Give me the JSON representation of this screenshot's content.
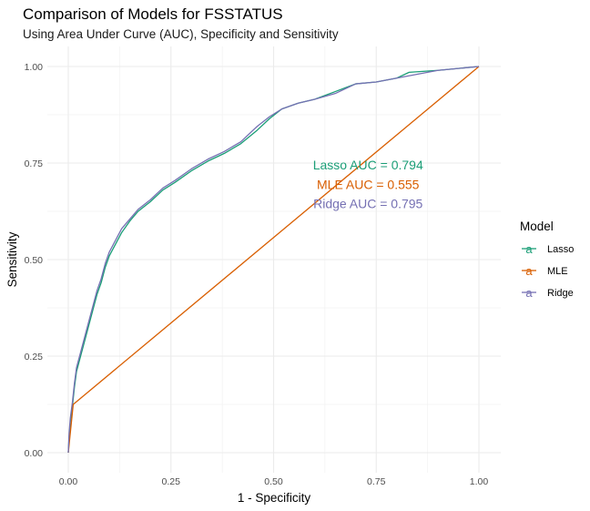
{
  "chart_data": {
    "type": "line",
    "title": "Comparison of Models for FSSTATUS",
    "subtitle": "Using Area Under Curve (AUC), Specificity and Sensitivity",
    "xlabel": "1 - Specificity",
    "ylabel": "Sensitivity",
    "xlim": [
      0,
      1
    ],
    "ylim": [
      0,
      1
    ],
    "x_ticks": [
      "0.00",
      "0.25",
      "0.50",
      "0.75",
      "1.00"
    ],
    "y_ticks": [
      "0.00",
      "0.25",
      "0.50",
      "0.75",
      "1.00"
    ],
    "grid": true,
    "legend": {
      "title": "Model",
      "position": "right",
      "key_glyph": "a",
      "entries": [
        {
          "label": "Lasso",
          "color": "#1b9e77"
        },
        {
          "label": "MLE",
          "color": "#d95f02"
        },
        {
          "label": "Ridge",
          "color": "#7570b3"
        }
      ]
    },
    "annotations": [
      {
        "text": "Lasso AUC = 0.794",
        "x": 0.73,
        "y": 0.745,
        "color": "#1b9e77"
      },
      {
        "text": "MLE AUC = 0.555",
        "x": 0.73,
        "y": 0.695,
        "color": "#d95f02"
      },
      {
        "text": "Ridge AUC = 0.795",
        "x": 0.73,
        "y": 0.645,
        "color": "#7570b3"
      }
    ],
    "series": [
      {
        "name": "Lasso",
        "color": "#1b9e77",
        "points": [
          [
            0,
            0
          ],
          [
            0.002,
            0.04
          ],
          [
            0.005,
            0.08
          ],
          [
            0.01,
            0.12
          ],
          [
            0.015,
            0.17
          ],
          [
            0.02,
            0.21
          ],
          [
            0.03,
            0.25
          ],
          [
            0.04,
            0.29
          ],
          [
            0.05,
            0.33
          ],
          [
            0.06,
            0.37
          ],
          [
            0.07,
            0.41
          ],
          [
            0.08,
            0.44
          ],
          [
            0.09,
            0.48
          ],
          [
            0.1,
            0.51
          ],
          [
            0.115,
            0.54
          ],
          [
            0.13,
            0.57
          ],
          [
            0.15,
            0.6
          ],
          [
            0.17,
            0.625
          ],
          [
            0.2,
            0.65
          ],
          [
            0.23,
            0.68
          ],
          [
            0.26,
            0.7
          ],
          [
            0.3,
            0.73
          ],
          [
            0.34,
            0.755
          ],
          [
            0.38,
            0.775
          ],
          [
            0.42,
            0.8
          ],
          [
            0.46,
            0.835
          ],
          [
            0.49,
            0.865
          ],
          [
            0.52,
            0.89
          ],
          [
            0.56,
            0.905
          ],
          [
            0.6,
            0.915
          ],
          [
            0.65,
            0.935
          ],
          [
            0.7,
            0.955
          ],
          [
            0.75,
            0.96
          ],
          [
            0.8,
            0.97
          ],
          [
            0.83,
            0.985
          ],
          [
            0.9,
            0.99
          ],
          [
            0.95,
            0.995
          ],
          [
            1,
            1
          ]
        ]
      },
      {
        "name": "MLE",
        "color": "#d95f02",
        "points": [
          [
            0,
            0
          ],
          [
            0.012,
            0.125
          ],
          [
            1,
            1
          ]
        ]
      },
      {
        "name": "Ridge",
        "color": "#7570b3",
        "points": [
          [
            0,
            0
          ],
          [
            0.002,
            0.05
          ],
          [
            0.005,
            0.09
          ],
          [
            0.01,
            0.13
          ],
          [
            0.015,
            0.18
          ],
          [
            0.02,
            0.22
          ],
          [
            0.03,
            0.26
          ],
          [
            0.04,
            0.3
          ],
          [
            0.05,
            0.34
          ],
          [
            0.06,
            0.38
          ],
          [
            0.07,
            0.42
          ],
          [
            0.08,
            0.45
          ],
          [
            0.09,
            0.49
          ],
          [
            0.1,
            0.52
          ],
          [
            0.115,
            0.55
          ],
          [
            0.13,
            0.58
          ],
          [
            0.15,
            0.605
          ],
          [
            0.17,
            0.63
          ],
          [
            0.2,
            0.655
          ],
          [
            0.23,
            0.685
          ],
          [
            0.26,
            0.705
          ],
          [
            0.3,
            0.735
          ],
          [
            0.34,
            0.76
          ],
          [
            0.38,
            0.78
          ],
          [
            0.42,
            0.805
          ],
          [
            0.46,
            0.845
          ],
          [
            0.49,
            0.87
          ],
          [
            0.52,
            0.89
          ],
          [
            0.56,
            0.905
          ],
          [
            0.6,
            0.915
          ],
          [
            0.65,
            0.93
          ],
          [
            0.7,
            0.955
          ],
          [
            0.75,
            0.96
          ],
          [
            0.8,
            0.97
          ],
          [
            0.85,
            0.98
          ],
          [
            0.9,
            0.99
          ],
          [
            0.95,
            0.995
          ],
          [
            1,
            1
          ]
        ]
      }
    ]
  }
}
